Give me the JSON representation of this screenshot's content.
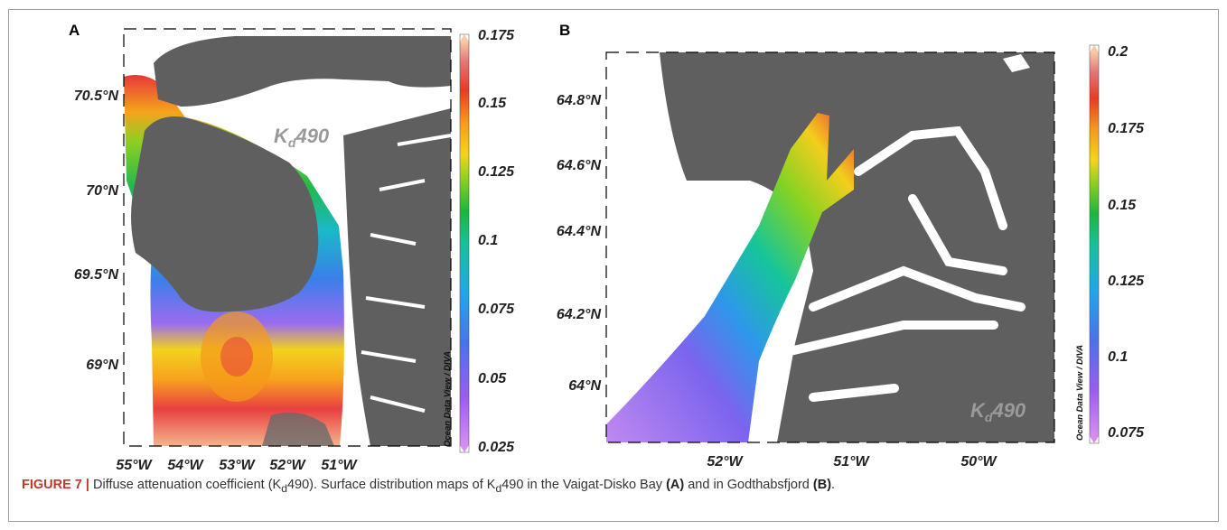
{
  "figure": {
    "panels": [
      {
        "label": "A",
        "title": "Kd490",
        "title_main": "K",
        "title_sub": "d",
        "title_tail": "490",
        "credit": "Ocean Data View / DIVA",
        "xticks": [
          "55°W",
          "54°W",
          "53°W",
          "52°W",
          "51°W"
        ],
        "yticks": [
          "70.5°N",
          "70°N",
          "69.5°N",
          "69°N"
        ],
        "colorbar": {
          "ticks": [
            "0.175",
            "0.15",
            "0.125",
            "0.1",
            "0.075",
            "0.05",
            "0.025"
          ],
          "min": 0.025,
          "max": 0.175
        }
      },
      {
        "label": "B",
        "title": "Kd490",
        "title_main": "K",
        "title_sub": "d",
        "title_tail": "490",
        "credit": "Ocean Data View / DIVA",
        "xticks": [
          "52°W",
          "51°W",
          "50°W"
        ],
        "yticks": [
          "64.8°N",
          "64.6°N",
          "64.4°N",
          "64.2°N",
          "64°N"
        ],
        "colorbar": {
          "ticks": [
            "0.2",
            "0.175",
            "0.15",
            "0.125",
            "0.1",
            "0.075"
          ],
          "min": 0.075,
          "max": 0.2
        }
      }
    ],
    "colors": {
      "land": "#5f5f5f",
      "water": "#ffffff",
      "high": "#e83a3a",
      "low": "#b36ef0",
      "accent": "#c0392b"
    },
    "caption": {
      "figure_label": "FIGURE 7 |",
      "text_1": " Diffuse attenuation coefficient (K",
      "sub_1": "d",
      "text_2": "490). Surface distribution maps of K",
      "sub_2": "d",
      "text_3": "490 in the Vaigat-Disko Bay ",
      "ref_a": "(A)",
      "text_4": " and in Godthabsfjord ",
      "ref_b": "(B)",
      "text_5": "."
    }
  }
}
